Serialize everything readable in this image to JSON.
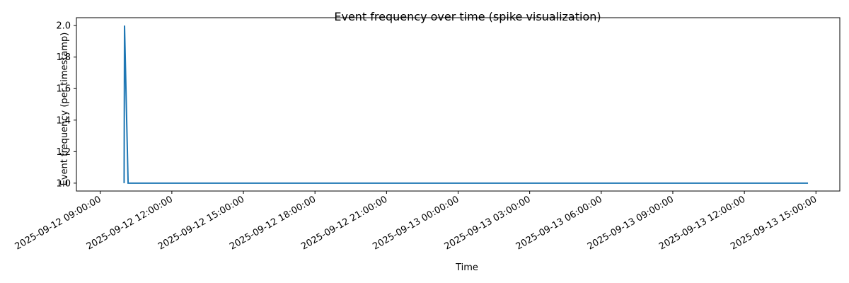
{
  "chart_data": {
    "type": "line",
    "title": "Event frequency over time (spike visualization)",
    "xlabel": "Time",
    "ylabel": "Event frequency (per timestamp)",
    "x_axis_type": "datetime",
    "xlim": [
      "2025-09-12 08:00:00",
      "2025-09-13 16:00:00"
    ],
    "ylim": [
      0.95,
      2.05
    ],
    "grid": false,
    "x_ticks": [
      "2025-09-12 09:00:00",
      "2025-09-12 12:00:00",
      "2025-09-12 15:00:00",
      "2025-09-12 18:00:00",
      "2025-09-12 21:00:00",
      "2025-09-13 00:00:00",
      "2025-09-13 03:00:00",
      "2025-09-13 06:00:00",
      "2025-09-13 09:00:00",
      "2025-09-13 12:00:00",
      "2025-09-13 15:00:00"
    ],
    "y_ticks": [
      "1.0",
      "1.2",
      "1.4",
      "1.6",
      "1.8",
      "2.0"
    ],
    "colors": {
      "series": "#1f77b4"
    },
    "series": [
      {
        "x": [
          "2025-09-12 10:00:00",
          "2025-09-12 10:01:00",
          "2025-09-12 10:10:00",
          "2025-09-13 14:40:00"
        ],
        "y": [
          1,
          2,
          1,
          1
        ]
      }
    ]
  }
}
